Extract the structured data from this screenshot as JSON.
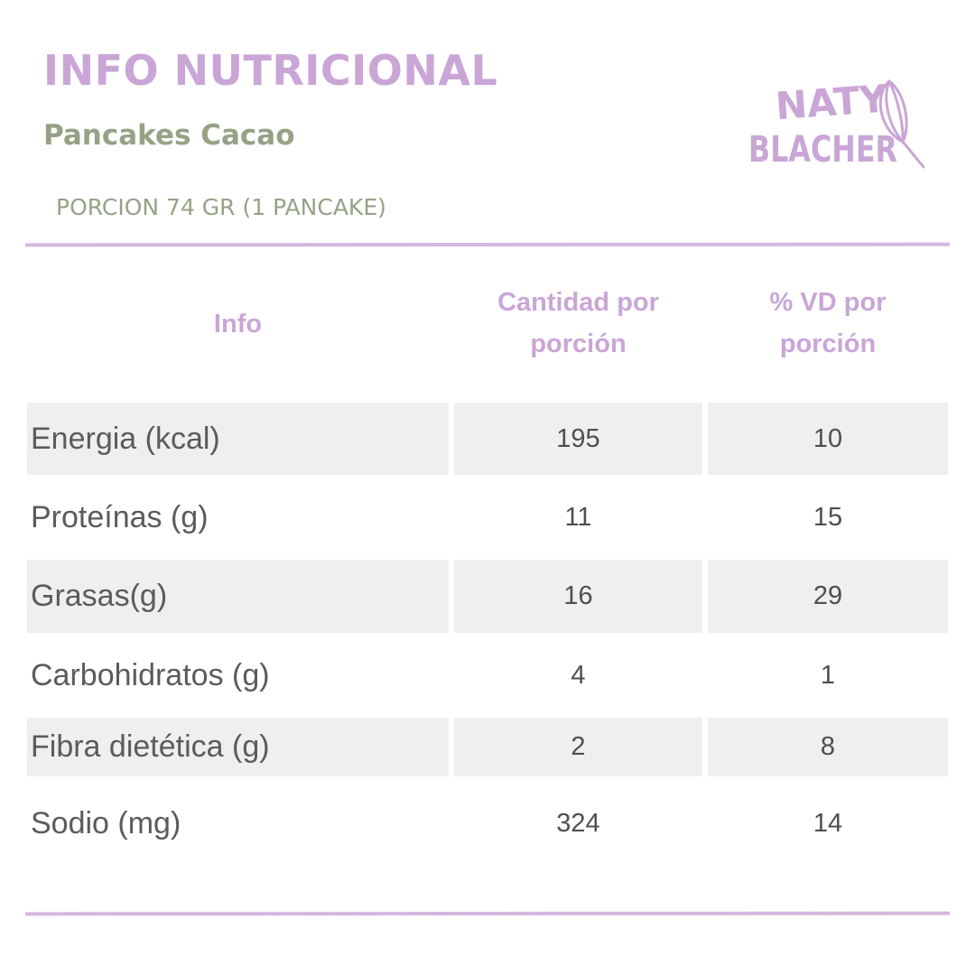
{
  "header": {
    "title": "INFO NUTRICIONAL",
    "subtitle": "Pancakes Cacao",
    "portion": "PORCION 74 GR (1 PANCAKE)"
  },
  "logo": {
    "line1": "NATY",
    "line2": "BLACHER",
    "icon": "whisk-icon",
    "color": "#c9a6d6"
  },
  "table": {
    "headers": {
      "info": "Info",
      "qty_line1": "Cantidad por",
      "qty_line2": "porción",
      "vd_line1": "% VD por",
      "vd_line2": "porción"
    },
    "rows": [
      {
        "label": "Energia (kcal)",
        "qty": "195",
        "vd": "10"
      },
      {
        "label": "Proteínas (g)",
        "qty": "11",
        "vd": "15"
      },
      {
        "label": "Grasas(g)",
        "qty": "16",
        "vd": "29"
      },
      {
        "label": "Carbohidratos (g)",
        "qty": "4",
        "vd": "1"
      },
      {
        "label": "Fibra dietética (g)",
        "qty": "2",
        "vd": "8"
      },
      {
        "label": "Sodio (mg)",
        "qty": "324",
        "vd": "14"
      }
    ]
  },
  "colors": {
    "title": "#c9a6d6",
    "subtitle": "#95a285",
    "rule": "#d4b7df",
    "row_shade": "#efefef"
  }
}
